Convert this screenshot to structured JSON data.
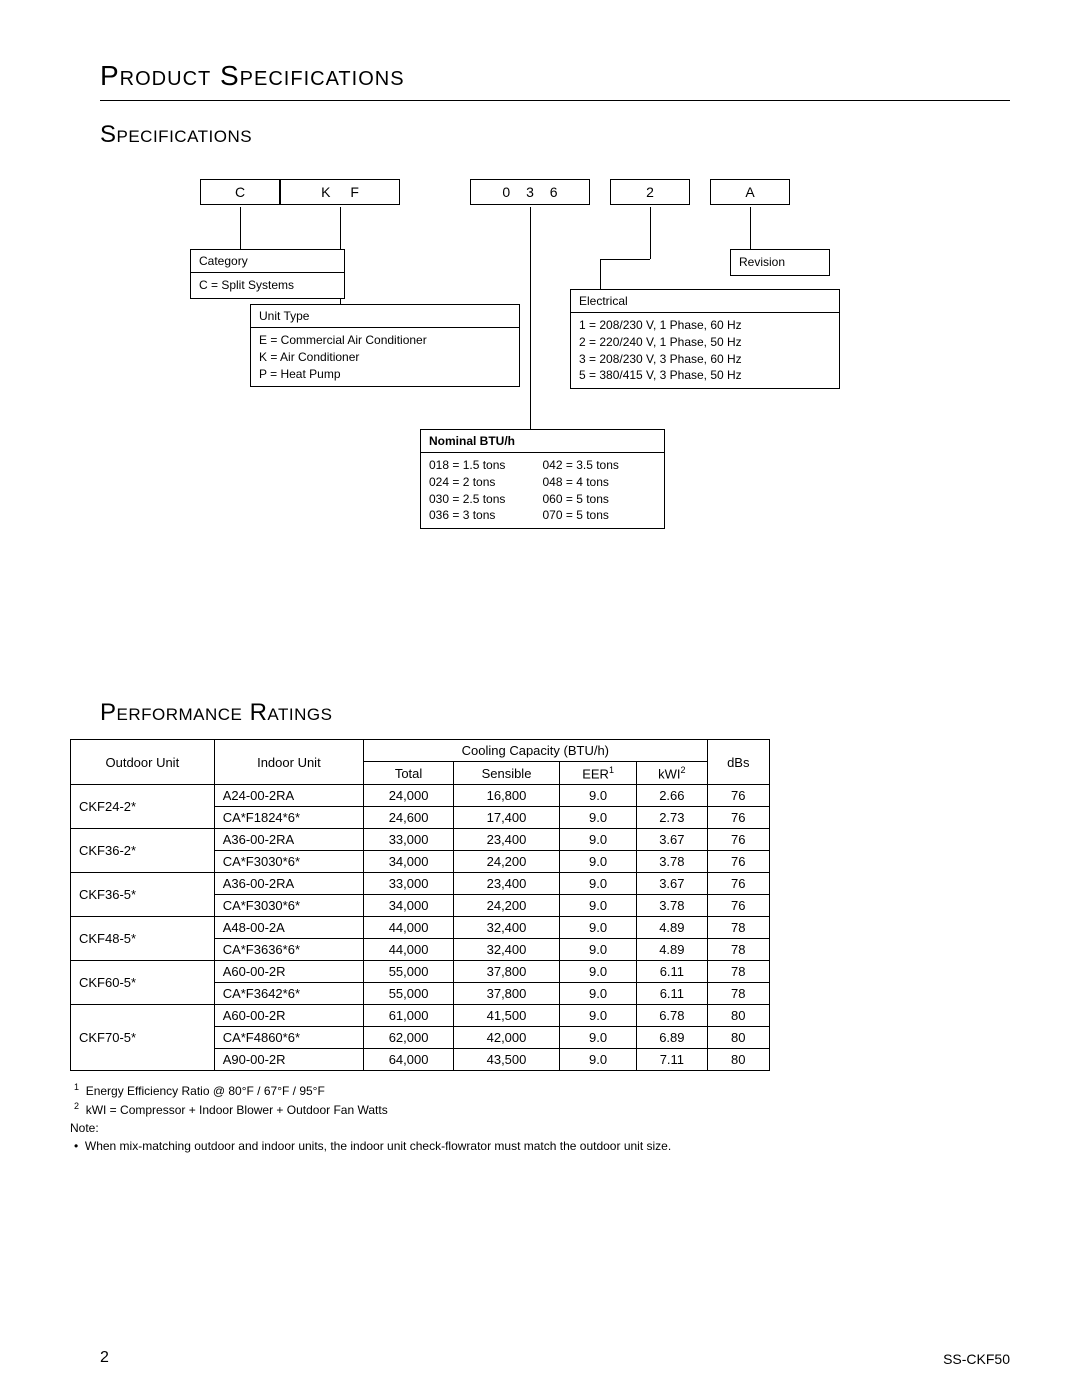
{
  "titles": {
    "main": "Product Specifications",
    "spec": "Specifications",
    "perf": "Performance Ratings"
  },
  "code_boxes": {
    "c": "C",
    "kf": "K F",
    "n036": "0 3 6",
    "n2": "2",
    "a": "A"
  },
  "legend": {
    "category": {
      "header": "Category",
      "line1": "C  = Split Systems"
    },
    "revision": {
      "header": "Revision"
    },
    "unit_type": {
      "header": "Unit Type",
      "line1": "E = Commercial Air Conditioner",
      "line2": "K = Air Conditioner",
      "line3": "P = Heat Pump"
    },
    "electrical": {
      "header": "Electrical",
      "line1": "1 = 208/230 V, 1 Phase, 60 Hz",
      "line2": "2 = 220/240 V, 1 Phase, 50 Hz",
      "line3": "3 = 208/230 V, 3 Phase, 60 Hz",
      "line4": "5 = 380/415 V, 3 Phase, 50 Hz"
    },
    "nominal": {
      "header": "Nominal BTU/h",
      "l1": "018 = 1.5 tons",
      "l2": "024 = 2 tons",
      "l3": "030 = 2.5 tons",
      "l4": "036 = 3 tons",
      "r1": "042 = 3.5 tons",
      "r2": "048 = 4 tons",
      "r3": "060 = 5 tons",
      "r4": "070 = 5 tons"
    }
  },
  "table": {
    "headers": {
      "outdoor": "Outdoor Unit",
      "indoor": "Indoor Unit",
      "cooling": "Cooling Capacity (BTU/h)",
      "total": "Total",
      "sensible": "Sensible",
      "eer": "EER",
      "eer_sup": "1",
      "kwi": "kWI",
      "kwi_sup": "2",
      "dbs": "dBs"
    },
    "rows": [
      {
        "outdoor": "CKF24-2*",
        "span": 2,
        "indoor": "A24-00-2RA",
        "total": "24,000",
        "sensible": "16,800",
        "eer": "9.0",
        "kwi": "2.66",
        "dbs": "76"
      },
      {
        "indoor": "CA*F1824*6*",
        "total": "24,600",
        "sensible": "17,400",
        "eer": "9.0",
        "kwi": "2.73",
        "dbs": "76"
      },
      {
        "outdoor": "CKF36-2*",
        "span": 2,
        "indoor": "A36-00-2RA",
        "total": "33,000",
        "sensible": "23,400",
        "eer": "9.0",
        "kwi": "3.67",
        "dbs": "76"
      },
      {
        "indoor": "CA*F3030*6*",
        "total": "34,000",
        "sensible": "24,200",
        "eer": "9.0",
        "kwi": "3.78",
        "dbs": "76"
      },
      {
        "outdoor": "CKF36-5*",
        "span": 2,
        "indoor": "A36-00-2RA",
        "total": "33,000",
        "sensible": "23,400",
        "eer": "9.0",
        "kwi": "3.67",
        "dbs": "76"
      },
      {
        "indoor": "CA*F3030*6*",
        "total": "34,000",
        "sensible": "24,200",
        "eer": "9.0",
        "kwi": "3.78",
        "dbs": "76"
      },
      {
        "outdoor": "CKF48-5*",
        "span": 2,
        "indoor": "A48-00-2A",
        "total": "44,000",
        "sensible": "32,400",
        "eer": "9.0",
        "kwi": "4.89",
        "dbs": "78"
      },
      {
        "indoor": "CA*F3636*6*",
        "total": "44,000",
        "sensible": "32,400",
        "eer": "9.0",
        "kwi": "4.89",
        "dbs": "78"
      },
      {
        "outdoor": "CKF60-5*",
        "span": 2,
        "indoor": "A60-00-2R",
        "total": "55,000",
        "sensible": "37,800",
        "eer": "9.0",
        "kwi": "6.11",
        "dbs": "78"
      },
      {
        "indoor": "CA*F3642*6*",
        "total": "55,000",
        "sensible": "37,800",
        "eer": "9.0",
        "kwi": "6.11",
        "dbs": "78"
      },
      {
        "outdoor": "CKF70-5*",
        "span": 3,
        "indoor": "A60-00-2R",
        "total": "61,000",
        "sensible": "41,500",
        "eer": "9.0",
        "kwi": "6.78",
        "dbs": "80"
      },
      {
        "indoor": "CA*F4860*6*",
        "total": "62,000",
        "sensible": "42,000",
        "eer": "9.0",
        "kwi": "6.89",
        "dbs": "80"
      },
      {
        "indoor": "A90-00-2R",
        "total": "64,000",
        "sensible": "43,500",
        "eer": "9.0",
        "kwi": "7.11",
        "dbs": "80"
      }
    ]
  },
  "notes": {
    "fn1_sup": "1",
    "fn1": "Energy Efficiency Ratio @ 80°F / 67°F / 95°F",
    "fn2_sup": "2",
    "fn2": "kWI = Compressor + Indoor Blower + Outdoor Fan Watts",
    "note_label": "Note:",
    "bullet": "When mix-matching outdoor and indoor units, the indoor unit check-flowrator must match the outdoor unit size."
  },
  "footer": {
    "page": "2",
    "doc": "SS-CKF50"
  }
}
